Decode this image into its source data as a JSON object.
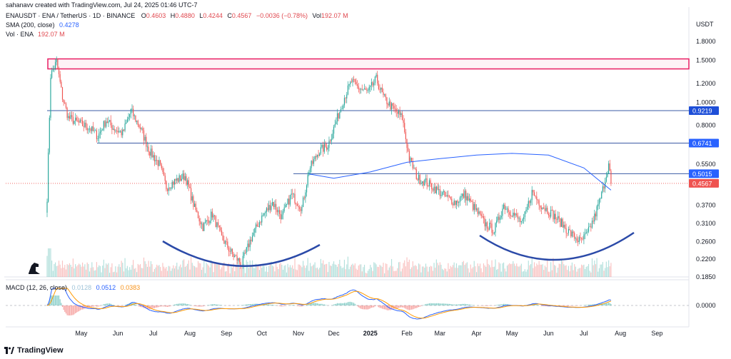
{
  "header": {
    "attribution": "sahanavv created with TradingView.com, Jul 24, 2025 01:46 UTC-7",
    "symbol": "ENAUSDT · ENA / TetherUS · 1D · BINANCE",
    "ohlc": {
      "O": "0.4603",
      "H": "0.4880",
      "L": "0.4244",
      "C": "0.4567",
      "change": "−0.0036 (−0.78%)",
      "vol": "192.07 M"
    },
    "labels": {
      "O": "O",
      "H": "H",
      "L": "L",
      "C": "C",
      "Vol": "Vol"
    },
    "sma_label": "SMA (200, close)",
    "sma_value": "0.4278",
    "vol_label": "Vol · ENA",
    "vol_value": "192.07 M"
  },
  "macd": {
    "label": "MACD (12, 26, close)",
    "hist": "0.0128",
    "macd": "0.0512",
    "signal": "0.0383"
  },
  "currency": "USDT",
  "brand": "TradingView",
  "colors": {
    "up": "#26a69a",
    "down": "#ef5350",
    "level": "#3b5ba5",
    "sma": "#2962ff",
    "pink": "#e91e63",
    "bowl": "#2b4aa8",
    "macd": "#2962ff",
    "signal": "#ff9800"
  },
  "chart_data": {
    "type": "candlestick",
    "y_scale": "log",
    "y_ticks": [
      "1.8000",
      "1.5000",
      "1.2000",
      "1.0000",
      "0.8000",
      "0.5500",
      "0.3700",
      "0.3100",
      "0.2600",
      "0.2200",
      "0.1850"
    ],
    "x_ticks": [
      "May",
      "Jun",
      "Jul",
      "Aug",
      "Sep",
      "Oct",
      "Nov",
      "Dec",
      "2025",
      "Feb",
      "Mar",
      "Apr",
      "May",
      "Jun",
      "Jul",
      "Aug",
      "Sep"
    ],
    "price_badges": [
      {
        "value": "0.9219",
        "color": "#1e4fd8"
      },
      {
        "value": "0.6741",
        "color": "#2962ff"
      },
      {
        "value": "0.5015",
        "color": "#2962ff"
      },
      {
        "value": "0.4567",
        "color": "#ef5350"
      }
    ],
    "horizontal_levels": [
      0.9219,
      0.6741,
      0.5015
    ],
    "resistance_zone": [
      1.38,
      1.52
    ],
    "macd_zero_label": "0.0000",
    "macd_axis_labels": [
      "0.1850",
      "0.0000"
    ],
    "close_path": [
      [
        "Apr 02",
        0.4
      ],
      [
        "Apr 05",
        1.3
      ],
      [
        "Apr 10",
        1.48
      ],
      [
        "Apr 15",
        1.05
      ],
      [
        "Apr 20",
        0.86
      ],
      [
        "Apr 28",
        0.82
      ],
      [
        "May 08",
        0.78
      ],
      [
        "May 15",
        0.72
      ],
      [
        "May 22",
        0.84
      ],
      [
        "May 28",
        0.78
      ],
      [
        "Jun 05",
        0.74
      ],
      [
        "Jun 12",
        0.92
      ],
      [
        "Jun 20",
        0.78
      ],
      [
        "Jun 28",
        0.62
      ],
      [
        "Jul 06",
        0.55
      ],
      [
        "Jul 12",
        0.44
      ],
      [
        "Jul 20",
        0.47
      ],
      [
        "Jul 28",
        0.49
      ],
      [
        "Aug 05",
        0.36
      ],
      [
        "Aug 12",
        0.3
      ],
      [
        "Aug 20",
        0.34
      ],
      [
        "Aug 28",
        0.27
      ],
      [
        "Sep 06",
        0.23
      ],
      [
        "Sep 14",
        0.21
      ],
      [
        "Sep 22",
        0.27
      ],
      [
        "Oct 01",
        0.33
      ],
      [
        "Oct 10",
        0.38
      ],
      [
        "Oct 18",
        0.33
      ],
      [
        "Oct 26",
        0.41
      ],
      [
        "Nov 04",
        0.36
      ],
      [
        "Nov 10",
        0.52
      ],
      [
        "Nov 18",
        0.62
      ],
      [
        "Nov 26",
        0.66
      ],
      [
        "Dec 04",
        0.86
      ],
      [
        "Dec 10",
        1.05
      ],
      [
        "Dec 16",
        1.22
      ],
      [
        "Dec 22",
        1.15
      ],
      [
        "Dec 30",
        1.1
      ],
      [
        "Jan 06",
        1.25
      ],
      [
        "Jan 12",
        1.05
      ],
      [
        "Jan 20",
        0.94
      ],
      [
        "Jan 28",
        0.86
      ],
      [
        "Feb 03",
        0.58
      ],
      [
        "Feb 10",
        0.48
      ],
      [
        "Feb 18",
        0.46
      ],
      [
        "Feb 26",
        0.43
      ],
      [
        "Mar 06",
        0.4
      ],
      [
        "Mar 14",
        0.38
      ],
      [
        "Mar 22",
        0.41
      ],
      [
        "Mar 30",
        0.36
      ],
      [
        "Apr 08",
        0.31
      ],
      [
        "Apr 16",
        0.29
      ],
      [
        "Apr 24",
        0.37
      ],
      [
        "May 02",
        0.34
      ],
      [
        "May 10",
        0.31
      ],
      [
        "May 18",
        0.42
      ],
      [
        "May 26",
        0.37
      ],
      [
        "Jun 04",
        0.34
      ],
      [
        "Jun 12",
        0.31
      ],
      [
        "Jun 20",
        0.28
      ],
      [
        "Jun 28",
        0.26
      ],
      [
        "Jul 04",
        0.28
      ],
      [
        "Jul 10",
        0.33
      ],
      [
        "Jul 16",
        0.41
      ],
      [
        "Jul 20",
        0.5
      ],
      [
        "Jul 22",
        0.55
      ],
      [
        "Jul 24",
        0.4567
      ]
    ],
    "sma200_path": [
      [
        "Nov 10",
        0.5
      ],
      [
        "Dec 01",
        0.48
      ],
      [
        "Jan 01",
        0.51
      ],
      [
        "Feb 01",
        0.56
      ],
      [
        "Mar 01",
        0.58
      ],
      [
        "Apr 01",
        0.6
      ],
      [
        "May 01",
        0.61
      ],
      [
        "Jun 01",
        0.6
      ],
      [
        "Jul 01",
        0.53
      ],
      [
        "Jul 24",
        0.4278
      ]
    ]
  }
}
